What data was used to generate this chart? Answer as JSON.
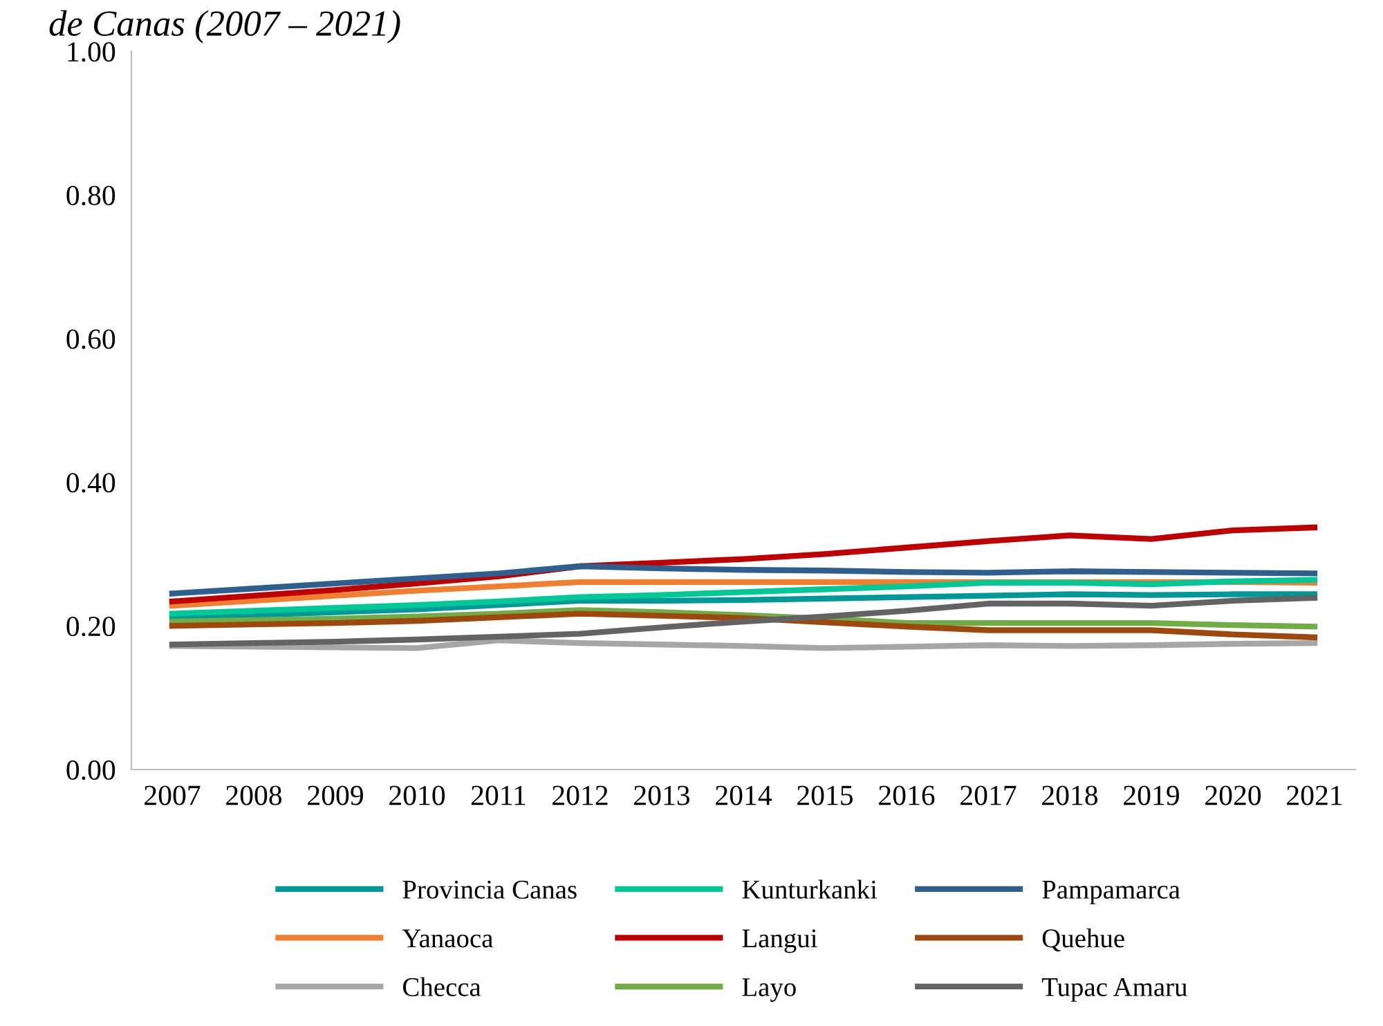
{
  "chart_data": {
    "type": "line",
    "title": "de Canas (2007 – 2021)",
    "categories": [
      "2007",
      "2008",
      "2009",
      "2010",
      "2011",
      "2012",
      "2013",
      "2014",
      "2015",
      "2016",
      "2017",
      "2018",
      "2019",
      "2020",
      "2021"
    ],
    "ylim": [
      0,
      1
    ],
    "yticks": [
      {
        "value": 0,
        "label": "0.00"
      },
      {
        "value": 0.2,
        "label": "0.20"
      },
      {
        "value": 0.4,
        "label": "0.40"
      },
      {
        "value": 0.6,
        "label": "0.60"
      },
      {
        "value": 0.8,
        "label": "0.80"
      },
      {
        "value": 1,
        "label": "1.00"
      }
    ],
    "grid": false,
    "legend": "bottom",
    "marker": "none",
    "line_style": "solid",
    "series": [
      {
        "name": "Provincia Canas",
        "color": "#009999",
        "values": [
          0.211,
          0.215,
          0.219,
          0.223,
          0.229,
          0.235,
          0.235,
          0.236,
          0.238,
          0.24,
          0.242,
          0.244,
          0.243,
          0.244,
          0.244
        ]
      },
      {
        "name": "Yanaoca",
        "color": "#f08030",
        "values": [
          0.228,
          0.235,
          0.242,
          0.249,
          0.255,
          0.261,
          0.261,
          0.261,
          0.261,
          0.261,
          0.261,
          0.261,
          0.261,
          0.261,
          0.26
        ]
      },
      {
        "name": "Checca",
        "color": "#a6a6a6",
        "values": [
          0.172,
          0.171,
          0.17,
          0.169,
          0.18,
          0.176,
          0.174,
          0.172,
          0.169,
          0.171,
          0.173,
          0.172,
          0.173,
          0.175,
          0.176
        ]
      },
      {
        "name": "Kunturkanki",
        "color": "#00c896",
        "values": [
          0.217,
          0.221,
          0.225,
          0.229,
          0.234,
          0.24,
          0.243,
          0.247,
          0.251,
          0.255,
          0.26,
          0.26,
          0.258,
          0.262,
          0.264
        ]
      },
      {
        "name": "Langui",
        "color": "#c00000",
        "values": [
          0.234,
          0.242,
          0.25,
          0.259,
          0.269,
          0.283,
          0.288,
          0.293,
          0.3,
          0.309,
          0.318,
          0.326,
          0.321,
          0.333,
          0.337
        ]
      },
      {
        "name": "Layo",
        "color": "#70ad47",
        "values": [
          0.206,
          0.208,
          0.21,
          0.213,
          0.217,
          0.222,
          0.219,
          0.215,
          0.21,
          0.204,
          0.204,
          0.204,
          0.204,
          0.201,
          0.199
        ]
      },
      {
        "name": "Pampamarca",
        "color": "#2e5f8f",
        "values": [
          0.245,
          0.252,
          0.259,
          0.266,
          0.273,
          0.283,
          0.28,
          0.278,
          0.277,
          0.275,
          0.274,
          0.276,
          0.275,
          0.274,
          0.273
        ]
      },
      {
        "name": "Quehue",
        "color": "#9e480e",
        "values": [
          0.2,
          0.202,
          0.204,
          0.207,
          0.212,
          0.217,
          0.214,
          0.211,
          0.205,
          0.199,
          0.194,
          0.194,
          0.194,
          0.188,
          0.184
        ]
      },
      {
        "name": "Tupac Amaru",
        "color": "#636363",
        "values": [
          0.174,
          0.176,
          0.178,
          0.181,
          0.185,
          0.189,
          0.198,
          0.206,
          0.213,
          0.221,
          0.231,
          0.231,
          0.228,
          0.235,
          0.239
        ]
      }
    ]
  }
}
